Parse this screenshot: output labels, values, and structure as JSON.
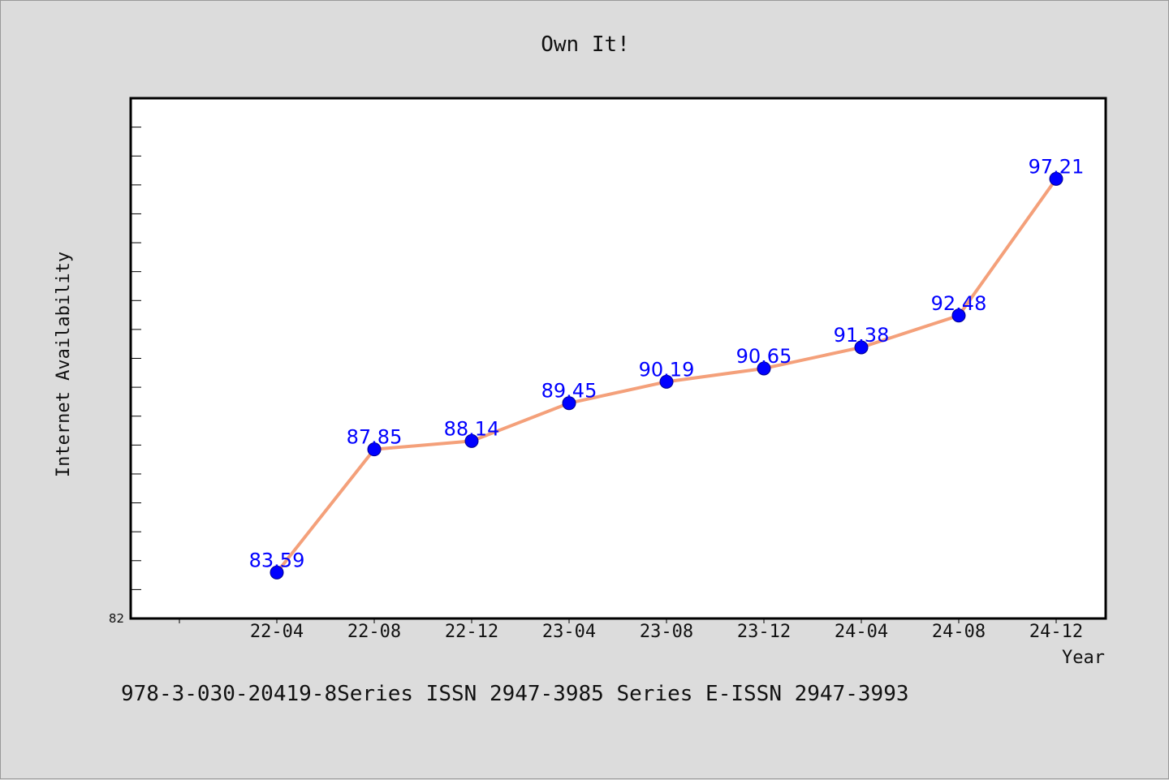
{
  "chart_data": {
    "type": "line",
    "title": "Own It!",
    "xlabel": "Year",
    "ylabel": "Internet Availability",
    "categories": [
      "22-04",
      "22-08",
      "22-12",
      "23-04",
      "23-08",
      "23-12",
      "24-04",
      "24-08",
      "24-12"
    ],
    "series": [
      {
        "values": [
          83.59,
          87.85,
          88.14,
          89.45,
          90.19,
          90.65,
          91.38,
          92.48,
          97.21
        ],
        "data_labels": [
          "83.59",
          "87.85",
          "88.14",
          "89.45",
          "90.19",
          "90.65",
          "91.38",
          "92.48",
          "97.21"
        ],
        "line_color": "#f4a07a",
        "marker_color": "#0000ff",
        "label_color": "#0000ff"
      }
    ],
    "ylim": [
      82,
      100
    ],
    "y_tick_label": "82",
    "grid": false,
    "background": "#dcdcdc",
    "plot_background": "#ffffff"
  },
  "footer": {
    "text": "978-3-030-20419-8Series ISSN 2947-3985 Series E-ISSN 2947-3993"
  }
}
